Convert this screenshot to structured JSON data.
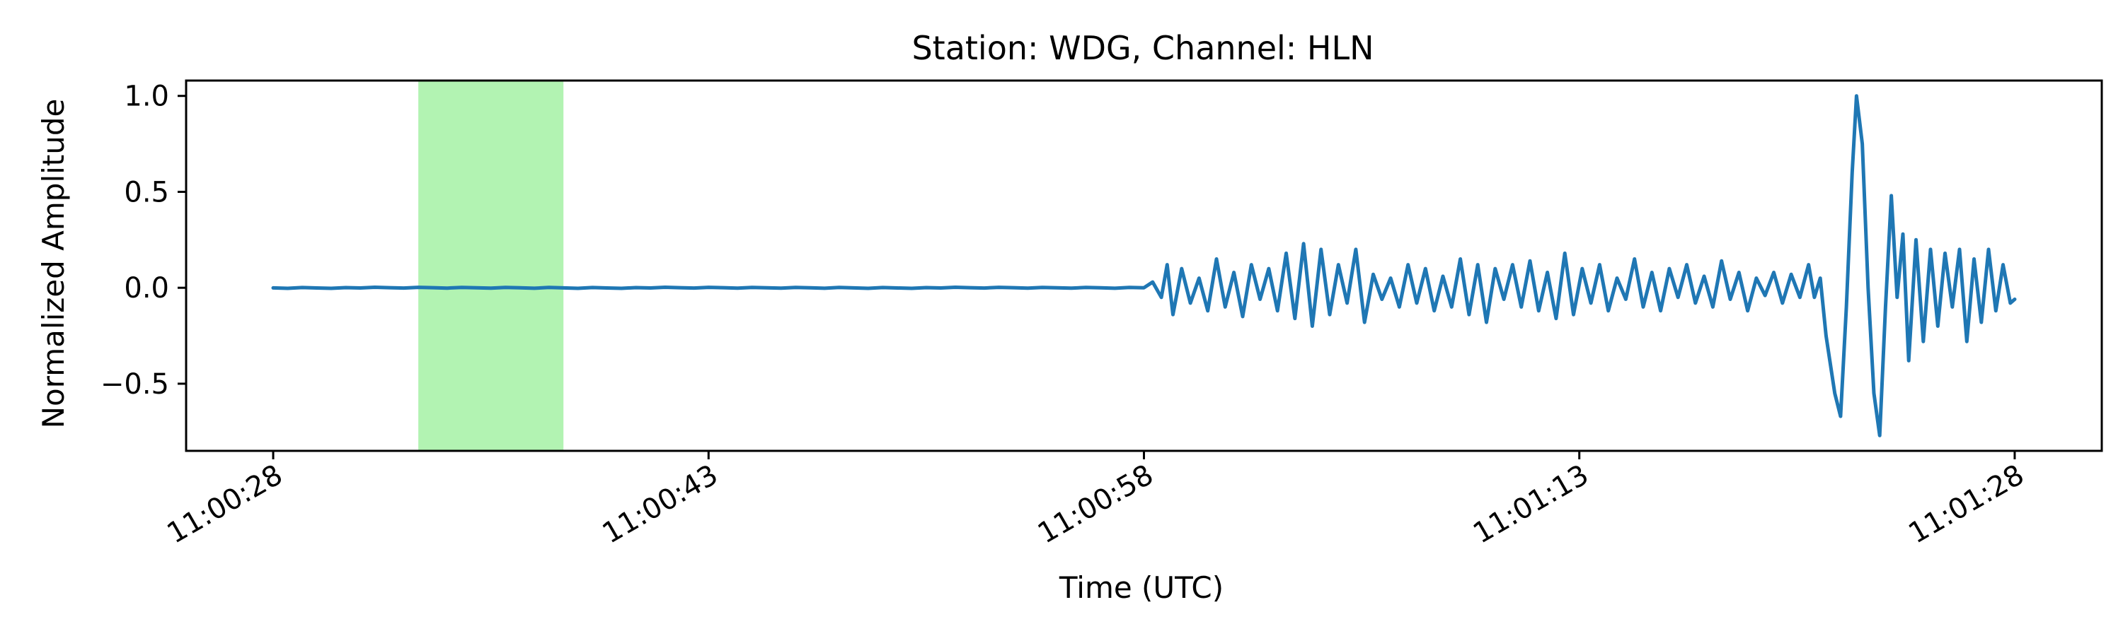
{
  "chart_data": {
    "type": "line",
    "title": "Station: WDG, Channel: HLN",
    "xlabel": "Time (UTC)",
    "ylabel": "Normalized Amplitude",
    "x_unit": "time (UTC)",
    "xlim": [
      "11:00:25",
      "11:01:31"
    ],
    "ylim": [
      -0.85,
      1.08
    ],
    "x_ticks": [
      "11:00:28",
      "11:00:43",
      "11:00:58",
      "11:01:13",
      "11:01:28"
    ],
    "y_ticks": [
      {
        "value": 1.0,
        "label": "1.0"
      },
      {
        "value": 0.5,
        "label": "0.5"
      },
      {
        "value": 0.0,
        "label": "0.0"
      },
      {
        "value": -0.5,
        "label": "−0.5"
      }
    ],
    "highlight_span": {
      "start": "11:00:33",
      "end": "11:00:38",
      "color": "#b2f3b2"
    },
    "grid": false,
    "series": [
      {
        "color": "#1f77b4",
        "quiet_segment": {
          "start": "11:00:28",
          "end": "11:00:58",
          "value": 0.0
        },
        "points": [
          [
            "11:00:58.0",
            0.0
          ],
          [
            "11:00:58.3",
            0.03
          ],
          [
            "11:00:58.6",
            -0.05
          ],
          [
            "11:00:58.8",
            0.12
          ],
          [
            "11:00:59.0",
            -0.14
          ],
          [
            "11:00:59.3",
            0.1
          ],
          [
            "11:00:59.6",
            -0.08
          ],
          [
            "11:00:59.9",
            0.05
          ],
          [
            "11:01:00.2",
            -0.12
          ],
          [
            "11:01:00.5",
            0.15
          ],
          [
            "11:01:00.8",
            -0.1
          ],
          [
            "11:01:01.1",
            0.08
          ],
          [
            "11:01:01.4",
            -0.15
          ],
          [
            "11:01:01.7",
            0.12
          ],
          [
            "11:01:02.0",
            -0.06
          ],
          [
            "11:01:02.3",
            0.1
          ],
          [
            "11:01:02.6",
            -0.12
          ],
          [
            "11:01:02.9",
            0.18
          ],
          [
            "11:01:03.2",
            -0.16
          ],
          [
            "11:01:03.5",
            0.23
          ],
          [
            "11:01:03.8",
            -0.2
          ],
          [
            "11:01:04.1",
            0.2
          ],
          [
            "11:01:04.4",
            -0.14
          ],
          [
            "11:01:04.7",
            0.12
          ],
          [
            "11:01:05.0",
            -0.08
          ],
          [
            "11:01:05.3",
            0.2
          ],
          [
            "11:01:05.6",
            -0.18
          ],
          [
            "11:01:05.9",
            0.07
          ],
          [
            "11:01:06.2",
            -0.06
          ],
          [
            "11:01:06.5",
            0.05
          ],
          [
            "11:01:06.8",
            -0.1
          ],
          [
            "11:01:07.1",
            0.12
          ],
          [
            "11:01:07.4",
            -0.08
          ],
          [
            "11:01:07.7",
            0.1
          ],
          [
            "11:01:08.0",
            -0.12
          ],
          [
            "11:01:08.3",
            0.06
          ],
          [
            "11:01:08.6",
            -0.1
          ],
          [
            "11:01:08.9",
            0.15
          ],
          [
            "11:01:09.2",
            -0.14
          ],
          [
            "11:01:09.5",
            0.12
          ],
          [
            "11:01:09.8",
            -0.18
          ],
          [
            "11:01:10.1",
            0.1
          ],
          [
            "11:01:10.4",
            -0.06
          ],
          [
            "11:01:10.7",
            0.12
          ],
          [
            "11:01:11.0",
            -0.1
          ],
          [
            "11:01:11.3",
            0.14
          ],
          [
            "11:01:11.6",
            -0.12
          ],
          [
            "11:01:11.9",
            0.08
          ],
          [
            "11:01:12.2",
            -0.16
          ],
          [
            "11:01:12.5",
            0.18
          ],
          [
            "11:01:12.8",
            -0.14
          ],
          [
            "11:01:13.1",
            0.1
          ],
          [
            "11:01:13.4",
            -0.08
          ],
          [
            "11:01:13.7",
            0.12
          ],
          [
            "11:01:14.0",
            -0.12
          ],
          [
            "11:01:14.3",
            0.05
          ],
          [
            "11:01:14.6",
            -0.06
          ],
          [
            "11:01:14.9",
            0.15
          ],
          [
            "11:01:15.2",
            -0.1
          ],
          [
            "11:01:15.5",
            0.08
          ],
          [
            "11:01:15.8",
            -0.12
          ],
          [
            "11:01:16.1",
            0.1
          ],
          [
            "11:01:16.4",
            -0.05
          ],
          [
            "11:01:16.7",
            0.12
          ],
          [
            "11:01:17.0",
            -0.08
          ],
          [
            "11:01:17.3",
            0.06
          ],
          [
            "11:01:17.6",
            -0.1
          ],
          [
            "11:01:17.9",
            0.14
          ],
          [
            "11:01:18.2",
            -0.06
          ],
          [
            "11:01:18.5",
            0.08
          ],
          [
            "11:01:18.8",
            -0.12
          ],
          [
            "11:01:19.1",
            0.05
          ],
          [
            "11:01:19.4",
            -0.04
          ],
          [
            "11:01:19.7",
            0.08
          ],
          [
            "11:01:20.0",
            -0.08
          ],
          [
            "11:01:20.3",
            0.07
          ],
          [
            "11:01:20.6",
            -0.05
          ],
          [
            "11:01:20.9",
            0.12
          ],
          [
            "11:01:21.1",
            -0.05
          ],
          [
            "11:01:21.3",
            0.05
          ],
          [
            "11:01:21.5",
            -0.25
          ],
          [
            "11:01:21.8",
            -0.55
          ],
          [
            "11:01:22.0",
            -0.67
          ],
          [
            "11:01:22.2",
            -0.1
          ],
          [
            "11:01:22.4",
            0.6
          ],
          [
            "11:01:22.55",
            1.0
          ],
          [
            "11:01:22.75",
            0.75
          ],
          [
            "11:01:22.95",
            0.0
          ],
          [
            "11:01:23.15",
            -0.55
          ],
          [
            "11:01:23.35",
            -0.77
          ],
          [
            "11:01:23.55",
            -0.1
          ],
          [
            "11:01:23.75",
            0.48
          ],
          [
            "11:01:23.95",
            -0.05
          ],
          [
            "11:01:24.15",
            0.28
          ],
          [
            "11:01:24.35",
            -0.38
          ],
          [
            "11:01:24.6",
            0.25
          ],
          [
            "11:01:24.85",
            -0.28
          ],
          [
            "11:01:25.1",
            0.2
          ],
          [
            "11:01:25.35",
            -0.2
          ],
          [
            "11:01:25.6",
            0.18
          ],
          [
            "11:01:25.85",
            -0.1
          ],
          [
            "11:01:26.1",
            0.2
          ],
          [
            "11:01:26.35",
            -0.28
          ],
          [
            "11:01:26.6",
            0.15
          ],
          [
            "11:01:26.85",
            -0.18
          ],
          [
            "11:01:27.1",
            0.2
          ],
          [
            "11:01:27.35",
            -0.12
          ],
          [
            "11:01:27.6",
            0.12
          ],
          [
            "11:01:27.85",
            -0.08
          ],
          [
            "11:01:28.0",
            -0.06
          ]
        ]
      }
    ]
  }
}
